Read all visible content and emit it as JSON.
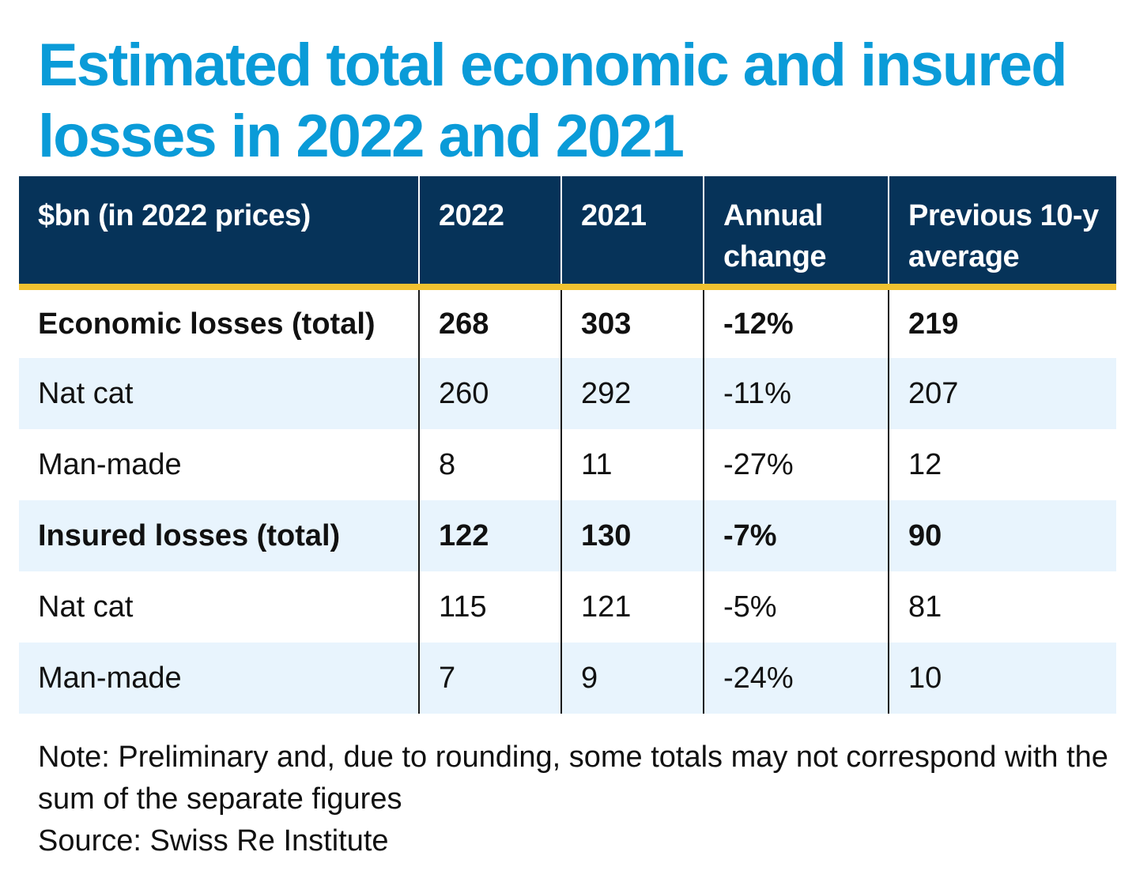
{
  "title": "Estimated total economic and insured losses in 2022 and 2021",
  "colors": {
    "title": "#0a9bd8",
    "header_bg": "#063359",
    "header_rule": "#f2c230",
    "row_shade": "#e8f4fd"
  },
  "chart_data": {
    "type": "table",
    "columns": [
      "$bn (in 2022 prices)",
      "2022",
      "2021",
      "Annual change",
      "Previous 10-y average"
    ],
    "rows": [
      {
        "label": "Economic losses (total)",
        "bold": true,
        "shaded": false,
        "values": [
          "268",
          "303",
          "-12%",
          "219"
        ]
      },
      {
        "label": "Nat cat",
        "bold": false,
        "shaded": true,
        "values": [
          "260",
          "292",
          "-11%",
          "207"
        ]
      },
      {
        "label": "Man-made",
        "bold": false,
        "shaded": false,
        "values": [
          "8",
          "11",
          "-27%",
          "12"
        ]
      },
      {
        "label": "Insured losses (total)",
        "bold": true,
        "shaded": true,
        "values": [
          "122",
          "130",
          "-7%",
          "90"
        ]
      },
      {
        "label": "Nat cat",
        "bold": false,
        "shaded": false,
        "values": [
          "115",
          "121",
          "-5%",
          "81"
        ]
      },
      {
        "label": "Man-made",
        "bold": false,
        "shaded": true,
        "values": [
          "7",
          "9",
          "-24%",
          "10"
        ]
      }
    ]
  },
  "note": "Note: Preliminary and, due to rounding, some totals may not correspond with the sum of the separate figures",
  "source": "Source: Swiss Re Institute"
}
